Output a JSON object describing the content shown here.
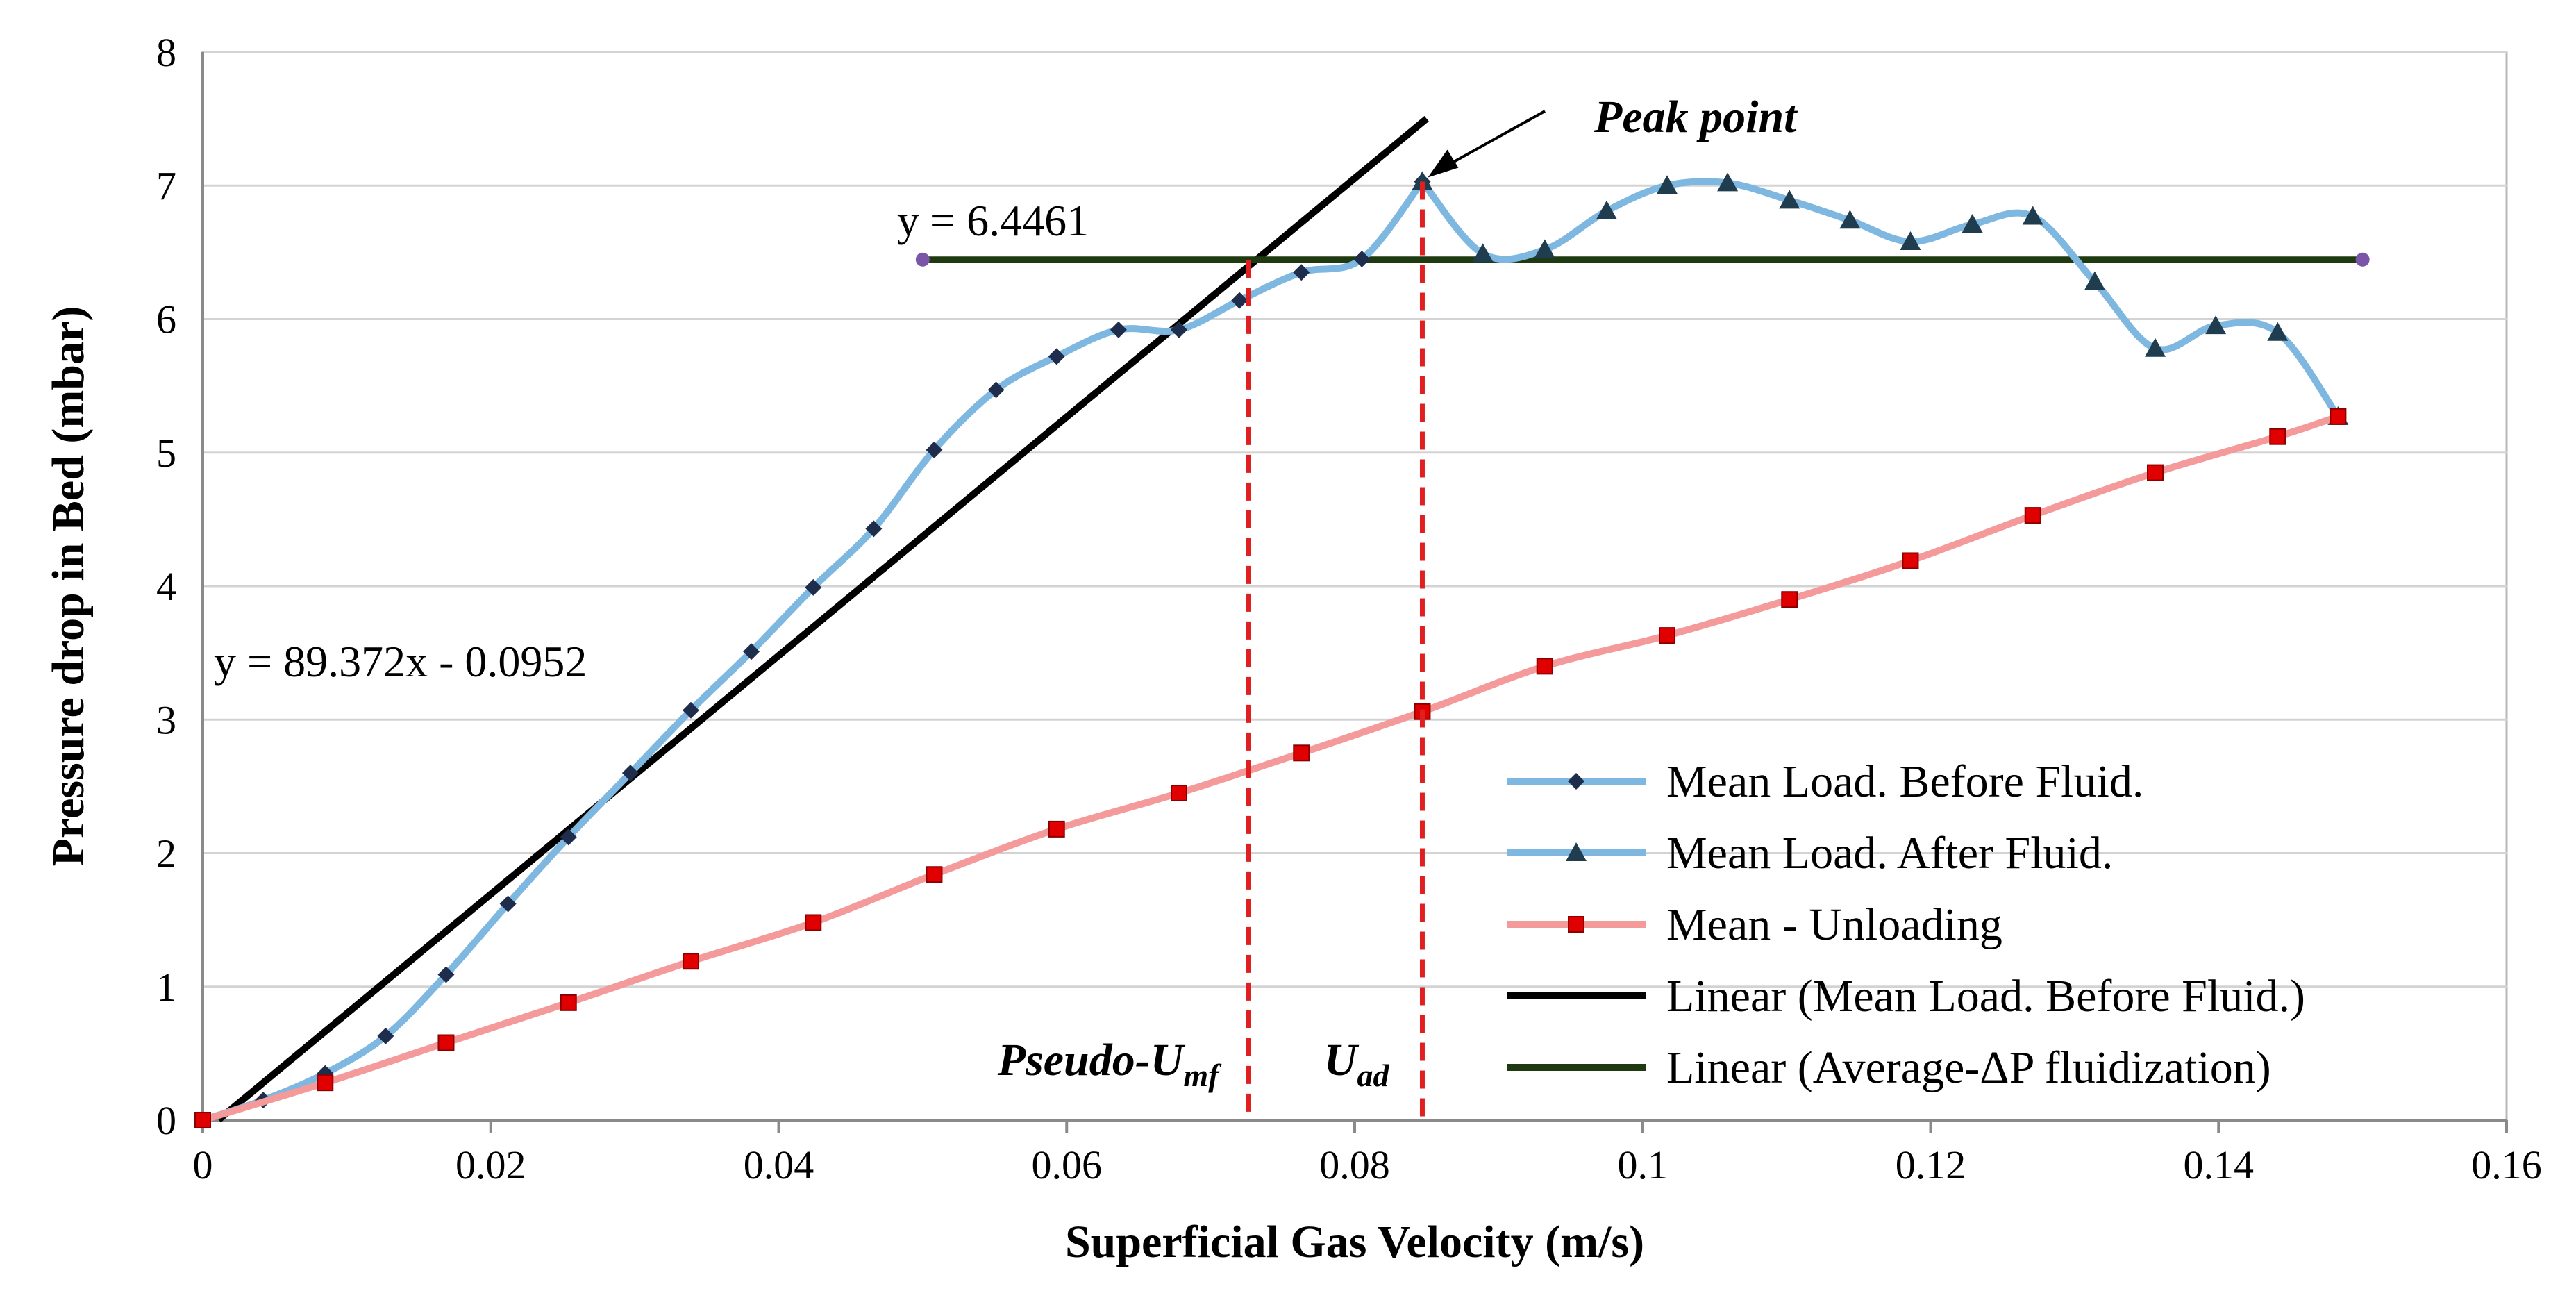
{
  "chart_data": {
    "type": "line",
    "xlabel": "Superficial Gas Velocity (m/s)",
    "ylabel": "Pressure drop in Bed (mbar)",
    "xlim": [
      0,
      0.16
    ],
    "ylim": [
      0,
      8
    ],
    "grid": "horizontal",
    "x_ticks": [
      "0",
      "0.02",
      "0.04",
      "0.06",
      "0.08",
      "0.1",
      "0.12",
      "0.14",
      "0.16"
    ],
    "y_ticks": [
      "0",
      "1",
      "2",
      "3",
      "4",
      "5",
      "6",
      "7",
      "8"
    ],
    "series": [
      {
        "name": "Mean Load. Before Fluid.",
        "color": "#7eb8e0",
        "marker": "diamond",
        "marker_color": "#1f2d4d",
        "x": [
          0,
          0.0042,
          0.0085,
          0.0127,
          0.0169,
          0.0212,
          0.0254,
          0.0297,
          0.0339,
          0.0381,
          0.0424,
          0.0466,
          0.0508,
          0.0551,
          0.0593,
          0.0636,
          0.0678,
          0.072,
          0.0763,
          0.0805,
          0.0847
        ],
        "y": [
          0,
          0.15,
          0.35,
          0.63,
          1.09,
          1.62,
          2.12,
          2.6,
          3.07,
          3.51,
          3.99,
          4.43,
          5.02,
          5.47,
          5.72,
          5.92,
          5.92,
          6.14,
          6.35,
          6.45,
          7.03
        ]
      },
      {
        "name": "Mean Load. After Fluid.",
        "color": "#7eb8e0",
        "marker": "triangle",
        "marker_color": "#1f3d4f",
        "x": [
          0.0847,
          0.0889,
          0.0932,
          0.0975,
          0.1017,
          0.1059,
          0.1102,
          0.1144,
          0.1186,
          0.1229,
          0.1271,
          0.1314,
          0.1356,
          0.1398,
          0.1441,
          0.1483
        ],
        "y": [
          7.03,
          6.49,
          6.52,
          6.81,
          7.0,
          7.02,
          6.89,
          6.74,
          6.58,
          6.71,
          6.77,
          6.28,
          5.78,
          5.95,
          5.9,
          5.27
        ]
      },
      {
        "name": "Mean - Unloading",
        "color": "#f59a9a",
        "marker": "square",
        "marker_color": "#e00000",
        "x": [
          0,
          0.0085,
          0.0169,
          0.0254,
          0.0339,
          0.0424,
          0.0508,
          0.0593,
          0.0678,
          0.0763,
          0.0847,
          0.0932,
          0.1017,
          0.1102,
          0.1186,
          0.1271,
          0.1356,
          0.1441,
          0.1483
        ],
        "y": [
          0,
          0.28,
          0.58,
          0.88,
          1.19,
          1.48,
          1.84,
          2.18,
          2.45,
          2.75,
          3.06,
          3.4,
          3.63,
          3.9,
          4.19,
          4.53,
          4.85,
          5.12,
          5.27
        ]
      },
      {
        "name": "Linear (Mean Load. Before Fluid.)",
        "color": "#000000",
        "type": "trendline",
        "slope": 89.372,
        "intercept": -0.0952,
        "x_range": [
          0.0011,
          0.085
        ]
      },
      {
        "name": "Linear (Average-ΔP fluidization)",
        "color": "#1f3a10",
        "type": "trendline",
        "y_value": 6.4461,
        "x_range": [
          0.05,
          0.15
        ],
        "endpoint_color": "#7a55a8"
      }
    ],
    "equations": [
      {
        "text": "y = 6.4461",
        "series": "Linear (Average-ΔP fluidization)"
      },
      {
        "text": "y = 89.372x - 0.0952",
        "series": "Linear (Mean Load. Before Fluid.)"
      }
    ],
    "vertical_markers": [
      {
        "label_main": "Pseudo-U",
        "label_sub": "mf",
        "x": 0.0726,
        "y_top": 6.44,
        "color": "#e02020"
      },
      {
        "label_main": "U",
        "label_sub": "ad",
        "x": 0.0847,
        "y_top": 7.03,
        "color": "#e02020"
      }
    ],
    "annotations": [
      {
        "text": "Peak point",
        "x": 0.0847,
        "y": 7.03
      }
    ],
    "legend": {
      "placement": "bottom-right",
      "entries": [
        {
          "label": "Mean Load. Before Fluid.",
          "color": "#7eb8e0",
          "marker": "diamond",
          "marker_color": "#1f2d4d"
        },
        {
          "label": "Mean Load. After Fluid.",
          "color": "#7eb8e0",
          "marker": "triangle",
          "marker_color": "#1f3d4f"
        },
        {
          "label": "Mean - Unloading",
          "color": "#f59a9a",
          "marker": "square",
          "marker_color": "#e00000"
        },
        {
          "label": "Linear (Mean Load. Before Fluid.)",
          "color": "#000000",
          "marker": "none"
        },
        {
          "label": "Linear (Average-ΔP fluidization)",
          "color": "#1f3a10",
          "marker": "none"
        }
      ]
    }
  }
}
